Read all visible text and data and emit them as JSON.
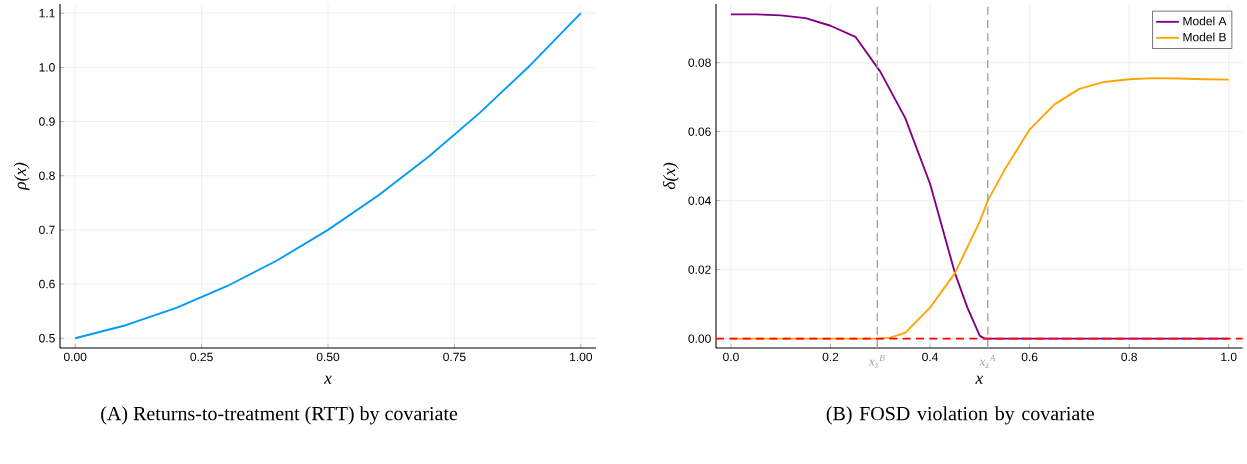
{
  "chart_data": [
    {
      "type": "line",
      "title": "(A)  Returns-to-treatment  (RTT)  by covariate",
      "xlabel": "x",
      "ylabel": "ρ(x)",
      "x": [
        0,
        0.1,
        0.2,
        0.3,
        0.4,
        0.5,
        0.6,
        0.7,
        0.8,
        0.9,
        1.0
      ],
      "series": [
        {
          "color": "#009af9",
          "values": [
            0.5,
            0.524,
            0.556,
            0.596,
            0.644,
            0.7,
            0.764,
            0.836,
            0.916,
            1.004,
            1.1
          ]
        }
      ],
      "xlim": [
        -0.03,
        1.03
      ],
      "ylim": [
        0.482,
        1.117
      ],
      "xticks": [
        {
          "value": 0,
          "label": "0.00"
        },
        0.25,
        {
          "value": 0.5,
          "label": "0.50"
        },
        0.75,
        {
          "value": 1,
          "label": "1.00"
        }
      ],
      "yticks": [
        0.5,
        0.6,
        0.7,
        0.8,
        0.9,
        {
          "value": 1,
          "label": "1.0"
        },
        1.1
      ],
      "grid": true,
      "legend": false
    },
    {
      "type": "line",
      "title": "(B) FOSD violation by covariate",
      "xlabel": "x",
      "ylabel": "δ(x)",
      "series": [
        {
          "name": "Model A",
          "color": "#800080",
          "x": [
            0,
            0.05,
            0.1,
            0.15,
            0.2,
            0.25,
            0.3,
            0.35,
            0.4,
            0.45,
            0.475,
            0.5,
            0.51,
            0.6,
            0.8,
            1.0
          ],
          "values": [
            0.094,
            0.094,
            0.0937,
            0.0929,
            0.0907,
            0.0875,
            0.0774,
            0.064,
            0.0449,
            0.019,
            0.009,
            0.0008,
            0,
            0,
            0,
            0
          ]
        },
        {
          "name": "Model B",
          "color": "#ffa500",
          "x": [
            0,
            0.2,
            0.3,
            0.32,
            0.35,
            0.4,
            0.45,
            0.5,
            0.516,
            0.55,
            0.6,
            0.65,
            0.7,
            0.75,
            0.8,
            0.85,
            0.9,
            0.95,
            1.0
          ],
          "values": [
            0,
            0,
            0,
            0.0003,
            0.0017,
            0.009,
            0.019,
            0.034,
            0.04,
            0.049,
            0.0606,
            0.0679,
            0.0724,
            0.0744,
            0.0752,
            0.0755,
            0.0754,
            0.0752,
            0.0751
          ]
        }
      ],
      "ref_lines": [
        {
          "axis": "x",
          "value": 0.294,
          "label": "x$_{z}$$^{B}$",
          "color": "#a0a0a0",
          "line_style": "dashed"
        },
        {
          "axis": "x",
          "value": 0.516,
          "label": "x$_{z}$$^{A}$",
          "color": "#a0a0a0",
          "line_style": "dashed"
        },
        {
          "axis": "y",
          "value": 0,
          "color": "#ff0000",
          "line_style": "dashed"
        }
      ],
      "xlim": [
        -0.03,
        1.028
      ],
      "ylim": [
        -0.0027,
        0.097
      ],
      "xticks": [
        {
          "value": 0,
          "label": "0.0"
        },
        0.2,
        0.4,
        0.6,
        0.8,
        {
          "value": 1,
          "label": "1.0"
        }
      ],
      "yticks": [
        {
          "value": 0,
          "label": "0.00"
        },
        {
          "value": 0.02,
          "label": "0.02"
        },
        {
          "value": 0.04,
          "label": "0.04"
        },
        {
          "value": 0.06,
          "label": "0.06"
        },
        {
          "value": 0.08,
          "label": "0.08"
        }
      ],
      "grid": true,
      "legend": "top right"
    }
  ]
}
